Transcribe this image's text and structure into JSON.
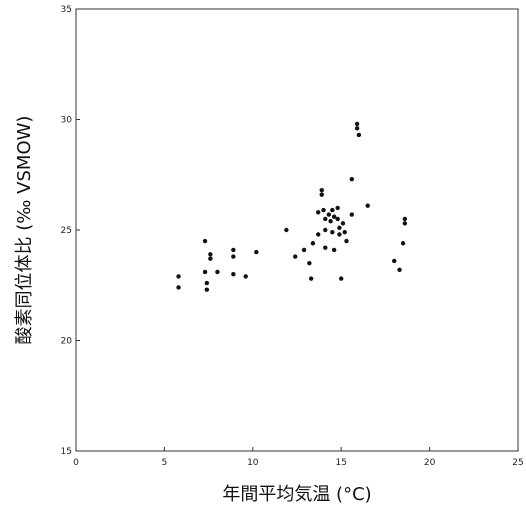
{
  "chart_data": {
    "type": "scatter",
    "xlabel": "年間平均気温 (°C)",
    "ylabel": "酸素同位体比 (‰ VSMOW)",
    "xlim": [
      0,
      25
    ],
    "ylim": [
      15,
      35
    ],
    "xticks": [
      "0",
      "5",
      "10",
      "15",
      "20",
      "25"
    ],
    "yticks": [
      "15",
      "20",
      "25",
      "30",
      "35"
    ],
    "grid": false,
    "marker_color": "#111111",
    "points": [
      {
        "x": 5.8,
        "y": 22.9
      },
      {
        "x": 5.8,
        "y": 22.4
      },
      {
        "x": 7.3,
        "y": 24.5
      },
      {
        "x": 7.3,
        "y": 23.1
      },
      {
        "x": 7.4,
        "y": 22.6
      },
      {
        "x": 7.4,
        "y": 22.3
      },
      {
        "x": 7.6,
        "y": 23.9
      },
      {
        "x": 7.6,
        "y": 23.7
      },
      {
        "x": 8.0,
        "y": 23.1
      },
      {
        "x": 8.9,
        "y": 24.1
      },
      {
        "x": 8.9,
        "y": 23.8
      },
      {
        "x": 8.9,
        "y": 23.0
      },
      {
        "x": 9.6,
        "y": 22.9
      },
      {
        "x": 10.2,
        "y": 24.0
      },
      {
        "x": 11.9,
        "y": 25.0
      },
      {
        "x": 12.4,
        "y": 23.8
      },
      {
        "x": 12.9,
        "y": 24.1
      },
      {
        "x": 13.2,
        "y": 23.5
      },
      {
        "x": 13.3,
        "y": 22.8
      },
      {
        "x": 13.4,
        "y": 24.4
      },
      {
        "x": 13.7,
        "y": 25.8
      },
      {
        "x": 13.7,
        "y": 24.8
      },
      {
        "x": 13.9,
        "y": 26.8
      },
      {
        "x": 13.9,
        "y": 26.6
      },
      {
        "x": 14.0,
        "y": 25.9
      },
      {
        "x": 14.1,
        "y": 25.5
      },
      {
        "x": 14.1,
        "y": 25.0
      },
      {
        "x": 14.1,
        "y": 24.2
      },
      {
        "x": 14.3,
        "y": 25.7
      },
      {
        "x": 14.4,
        "y": 25.4
      },
      {
        "x": 14.5,
        "y": 25.9
      },
      {
        "x": 14.5,
        "y": 24.9
      },
      {
        "x": 14.6,
        "y": 25.6
      },
      {
        "x": 14.6,
        "y": 24.1
      },
      {
        "x": 14.8,
        "y": 26.0
      },
      {
        "x": 14.8,
        "y": 25.5
      },
      {
        "x": 14.9,
        "y": 25.1
      },
      {
        "x": 14.9,
        "y": 24.8
      },
      {
        "x": 15.0,
        "y": 22.8
      },
      {
        "x": 15.1,
        "y": 25.3
      },
      {
        "x": 15.2,
        "y": 24.9
      },
      {
        "x": 15.3,
        "y": 24.5
      },
      {
        "x": 15.6,
        "y": 27.3
      },
      {
        "x": 15.6,
        "y": 25.7
      },
      {
        "x": 15.9,
        "y": 29.8
      },
      {
        "x": 15.9,
        "y": 29.6
      },
      {
        "x": 16.0,
        "y": 29.3
      },
      {
        "x": 16.5,
        "y": 26.1
      },
      {
        "x": 18.0,
        "y": 23.6
      },
      {
        "x": 18.3,
        "y": 23.2
      },
      {
        "x": 18.5,
        "y": 24.4
      },
      {
        "x": 18.6,
        "y": 25.5
      },
      {
        "x": 18.6,
        "y": 25.3
      }
    ]
  }
}
